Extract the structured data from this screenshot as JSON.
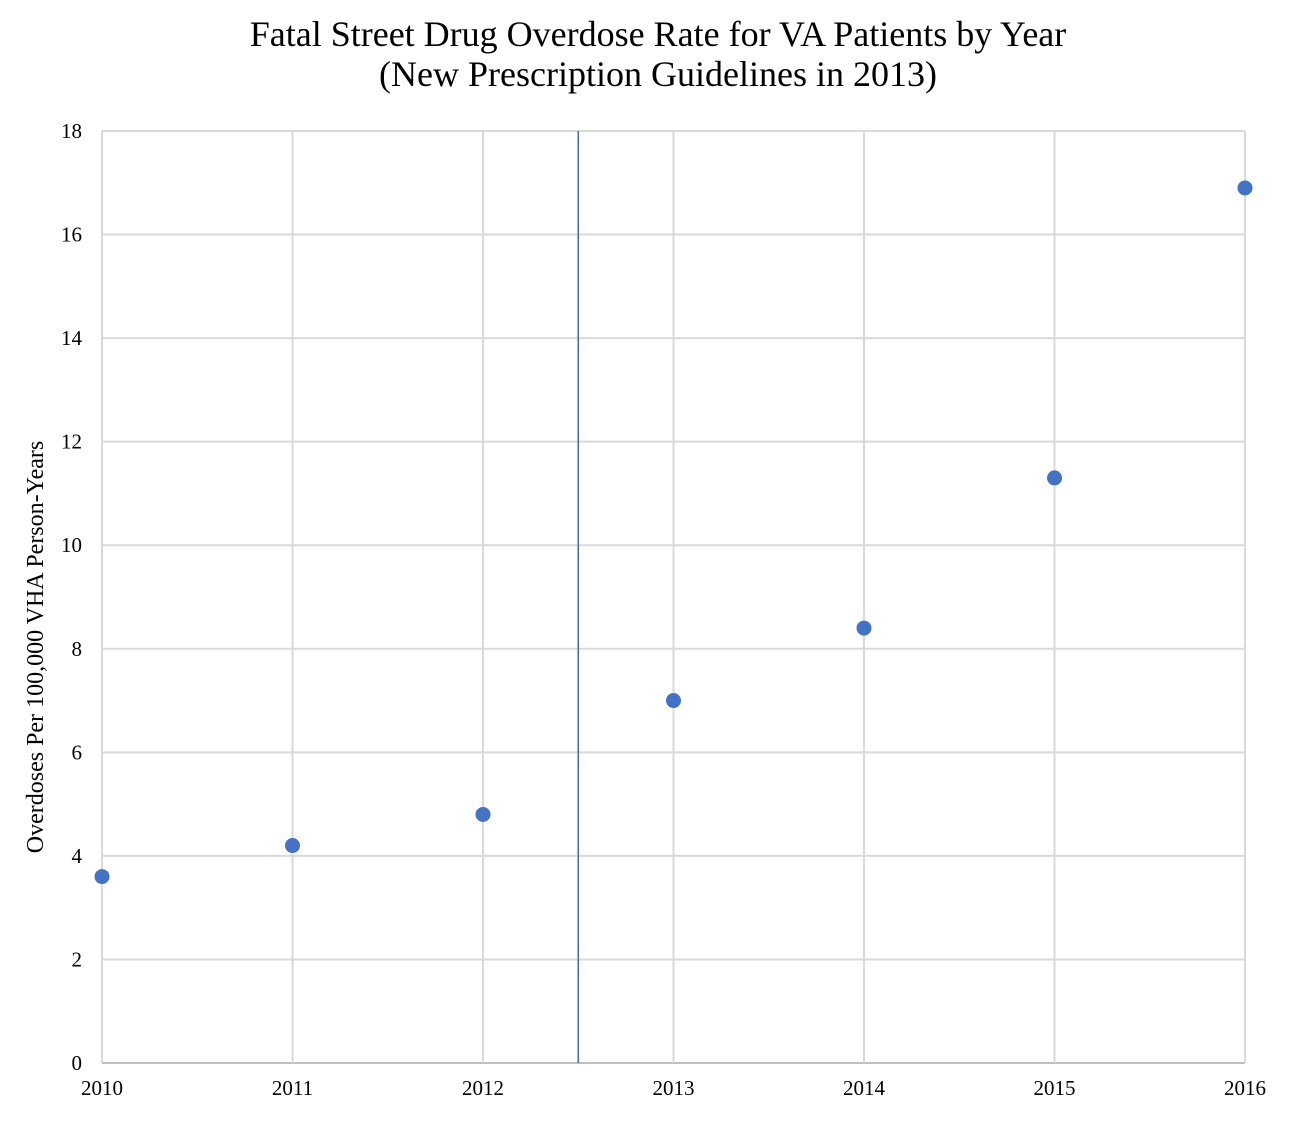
{
  "chart_data": {
    "type": "scatter",
    "title": "Fatal Street Drug Overdose Rate for VA Patients by Year",
    "subtitle": "(New Prescription Guidelines in 2013)",
    "xlabel": "",
    "ylabel": "Overdoses Per 100,000 VHA Person-Years",
    "x": [
      2010,
      2011,
      2012,
      2013,
      2014,
      2015,
      2016
    ],
    "y": [
      3.6,
      4.2,
      4.8,
      7.0,
      8.4,
      11.3,
      16.9
    ],
    "xlim": [
      2010,
      2016
    ],
    "ylim": [
      0,
      18
    ],
    "xticks": [
      "2010",
      "2011",
      "2012",
      "2013",
      "2014",
      "2015",
      "2016"
    ],
    "yticks": [
      "0",
      "2",
      "4",
      "6",
      "8",
      "10",
      "12",
      "14",
      "16",
      "18"
    ],
    "grid": true,
    "legend": "none",
    "annotations": [
      {
        "type": "vertical-line",
        "x": 2012.5
      }
    ],
    "colors": {
      "points": "#4472C4",
      "reference_line": "#4A66AC",
      "grid": "#D9D9D9"
    }
  }
}
